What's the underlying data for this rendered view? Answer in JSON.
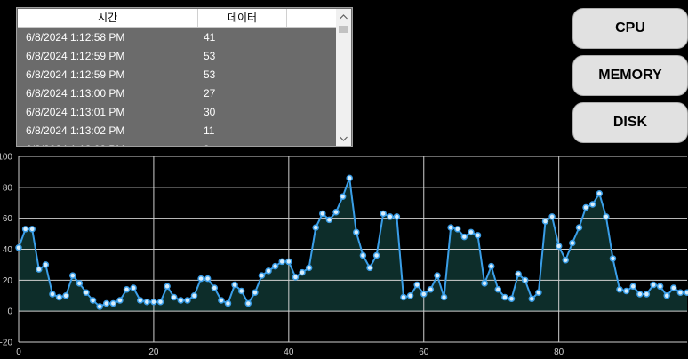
{
  "table": {
    "columns": [
      "시간",
      "데이터"
    ],
    "rows": [
      {
        "time": "6/8/2024 1:12:58 PM",
        "value": "41"
      },
      {
        "time": "6/8/2024 1:12:59 PM",
        "value": "53"
      },
      {
        "time": "6/8/2024 1:12:59 PM",
        "value": "53"
      },
      {
        "time": "6/8/2024 1:13:00 PM",
        "value": "27"
      },
      {
        "time": "6/8/2024 1:13:01 PM",
        "value": "30"
      },
      {
        "time": "6/8/2024 1:13:02 PM",
        "value": "11"
      },
      {
        "time": "6/8/2024 1:13:02 PM",
        "value": "9"
      }
    ]
  },
  "buttons": {
    "cpu": "CPU",
    "memory": "MEMORY",
    "disk": "DISK"
  },
  "colors": {
    "line": "#3a9ee8",
    "fill": "#0d2d2a",
    "marker_fill": "#d8eefc",
    "grid": "#d0d0d0"
  },
  "chart_data": {
    "type": "area",
    "title": "",
    "xlabel": "",
    "ylabel": "",
    "xlim": [
      0,
      99
    ],
    "ylim": [
      -20,
      100
    ],
    "xticks": [
      0,
      20,
      40,
      60,
      80
    ],
    "yticks": [
      -20,
      0,
      20,
      40,
      60,
      80,
      100
    ],
    "grid": true,
    "values": [
      41,
      53,
      53,
      27,
      30,
      11,
      9,
      10,
      23,
      18,
      12,
      7,
      3,
      5,
      5,
      7,
      14,
      15,
      7,
      6,
      6,
      6,
      16,
      9,
      7,
      7,
      10,
      21,
      21,
      15,
      7,
      5,
      17,
      13,
      5,
      12,
      23,
      26,
      29,
      32,
      32,
      22,
      25,
      28,
      54,
      63,
      59,
      64,
      74,
      86,
      51,
      36,
      28,
      36,
      63,
      61,
      61,
      9,
      10,
      17,
      11,
      14,
      23,
      9,
      54,
      53,
      48,
      51,
      49,
      18,
      29,
      14,
      9,
      8,
      24,
      20,
      8,
      12,
      58,
      61,
      42,
      33,
      44,
      54,
      67,
      69,
      76,
      61,
      34,
      14,
      13,
      16,
      11,
      11,
      17,
      16,
      10,
      15,
      12,
      12
    ]
  }
}
